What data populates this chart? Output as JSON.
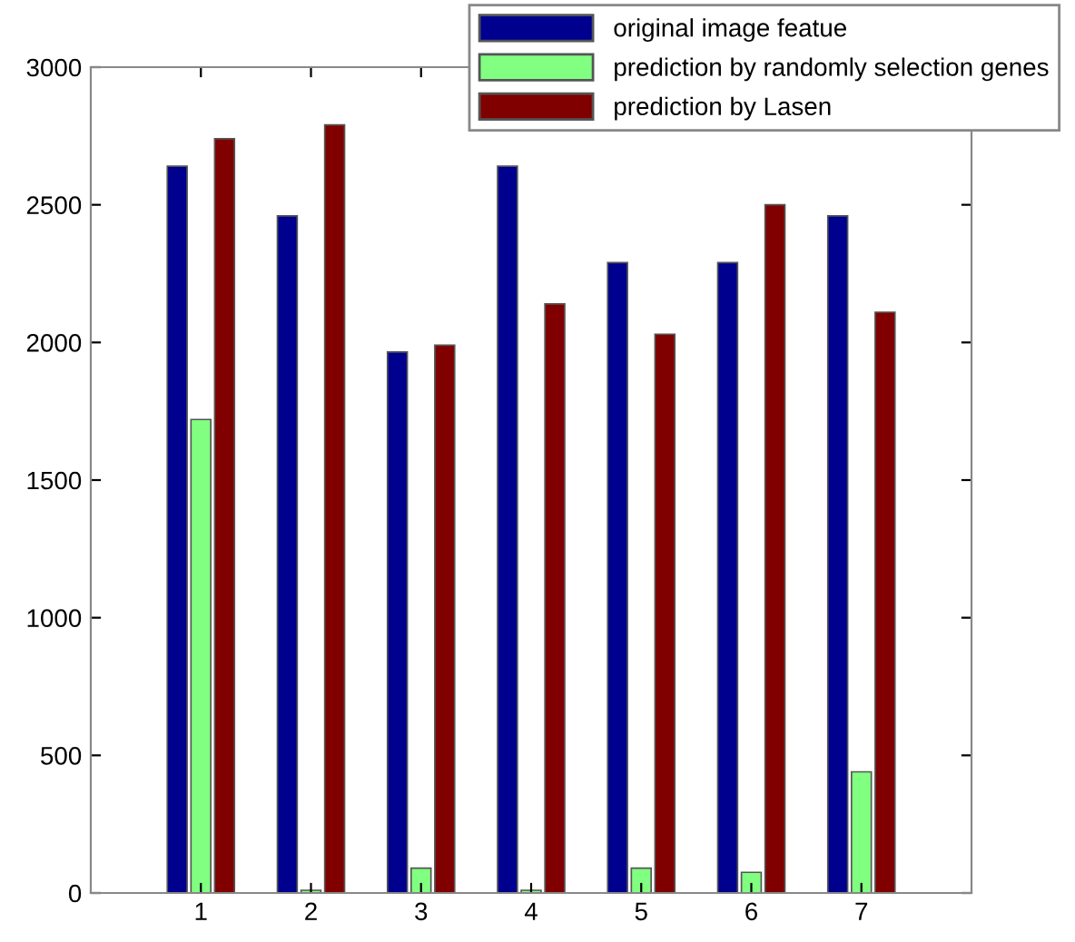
{
  "chart_data": {
    "type": "bar",
    "categories": [
      "1",
      "2",
      "3",
      "4",
      "5",
      "6",
      "7"
    ],
    "series": [
      {
        "name": "original image featue",
        "color": "#00008f",
        "values": [
          2640,
          2460,
          1965,
          2640,
          2290,
          2290,
          2460
        ]
      },
      {
        "name": "prediction by randomly selection genes",
        "color": "#80ff80",
        "values": [
          1720,
          10,
          90,
          10,
          90,
          75,
          440
        ]
      },
      {
        "name": "prediction by Lasen",
        "color": "#800000",
        "values": [
          2740,
          2790,
          1990,
          2140,
          2030,
          2500,
          2110
        ]
      }
    ],
    "ylim": [
      0,
      3000
    ],
    "yticks": [
      0,
      500,
      1000,
      1500,
      2000,
      2500,
      3000
    ],
    "grid": false,
    "legend": "top right"
  }
}
